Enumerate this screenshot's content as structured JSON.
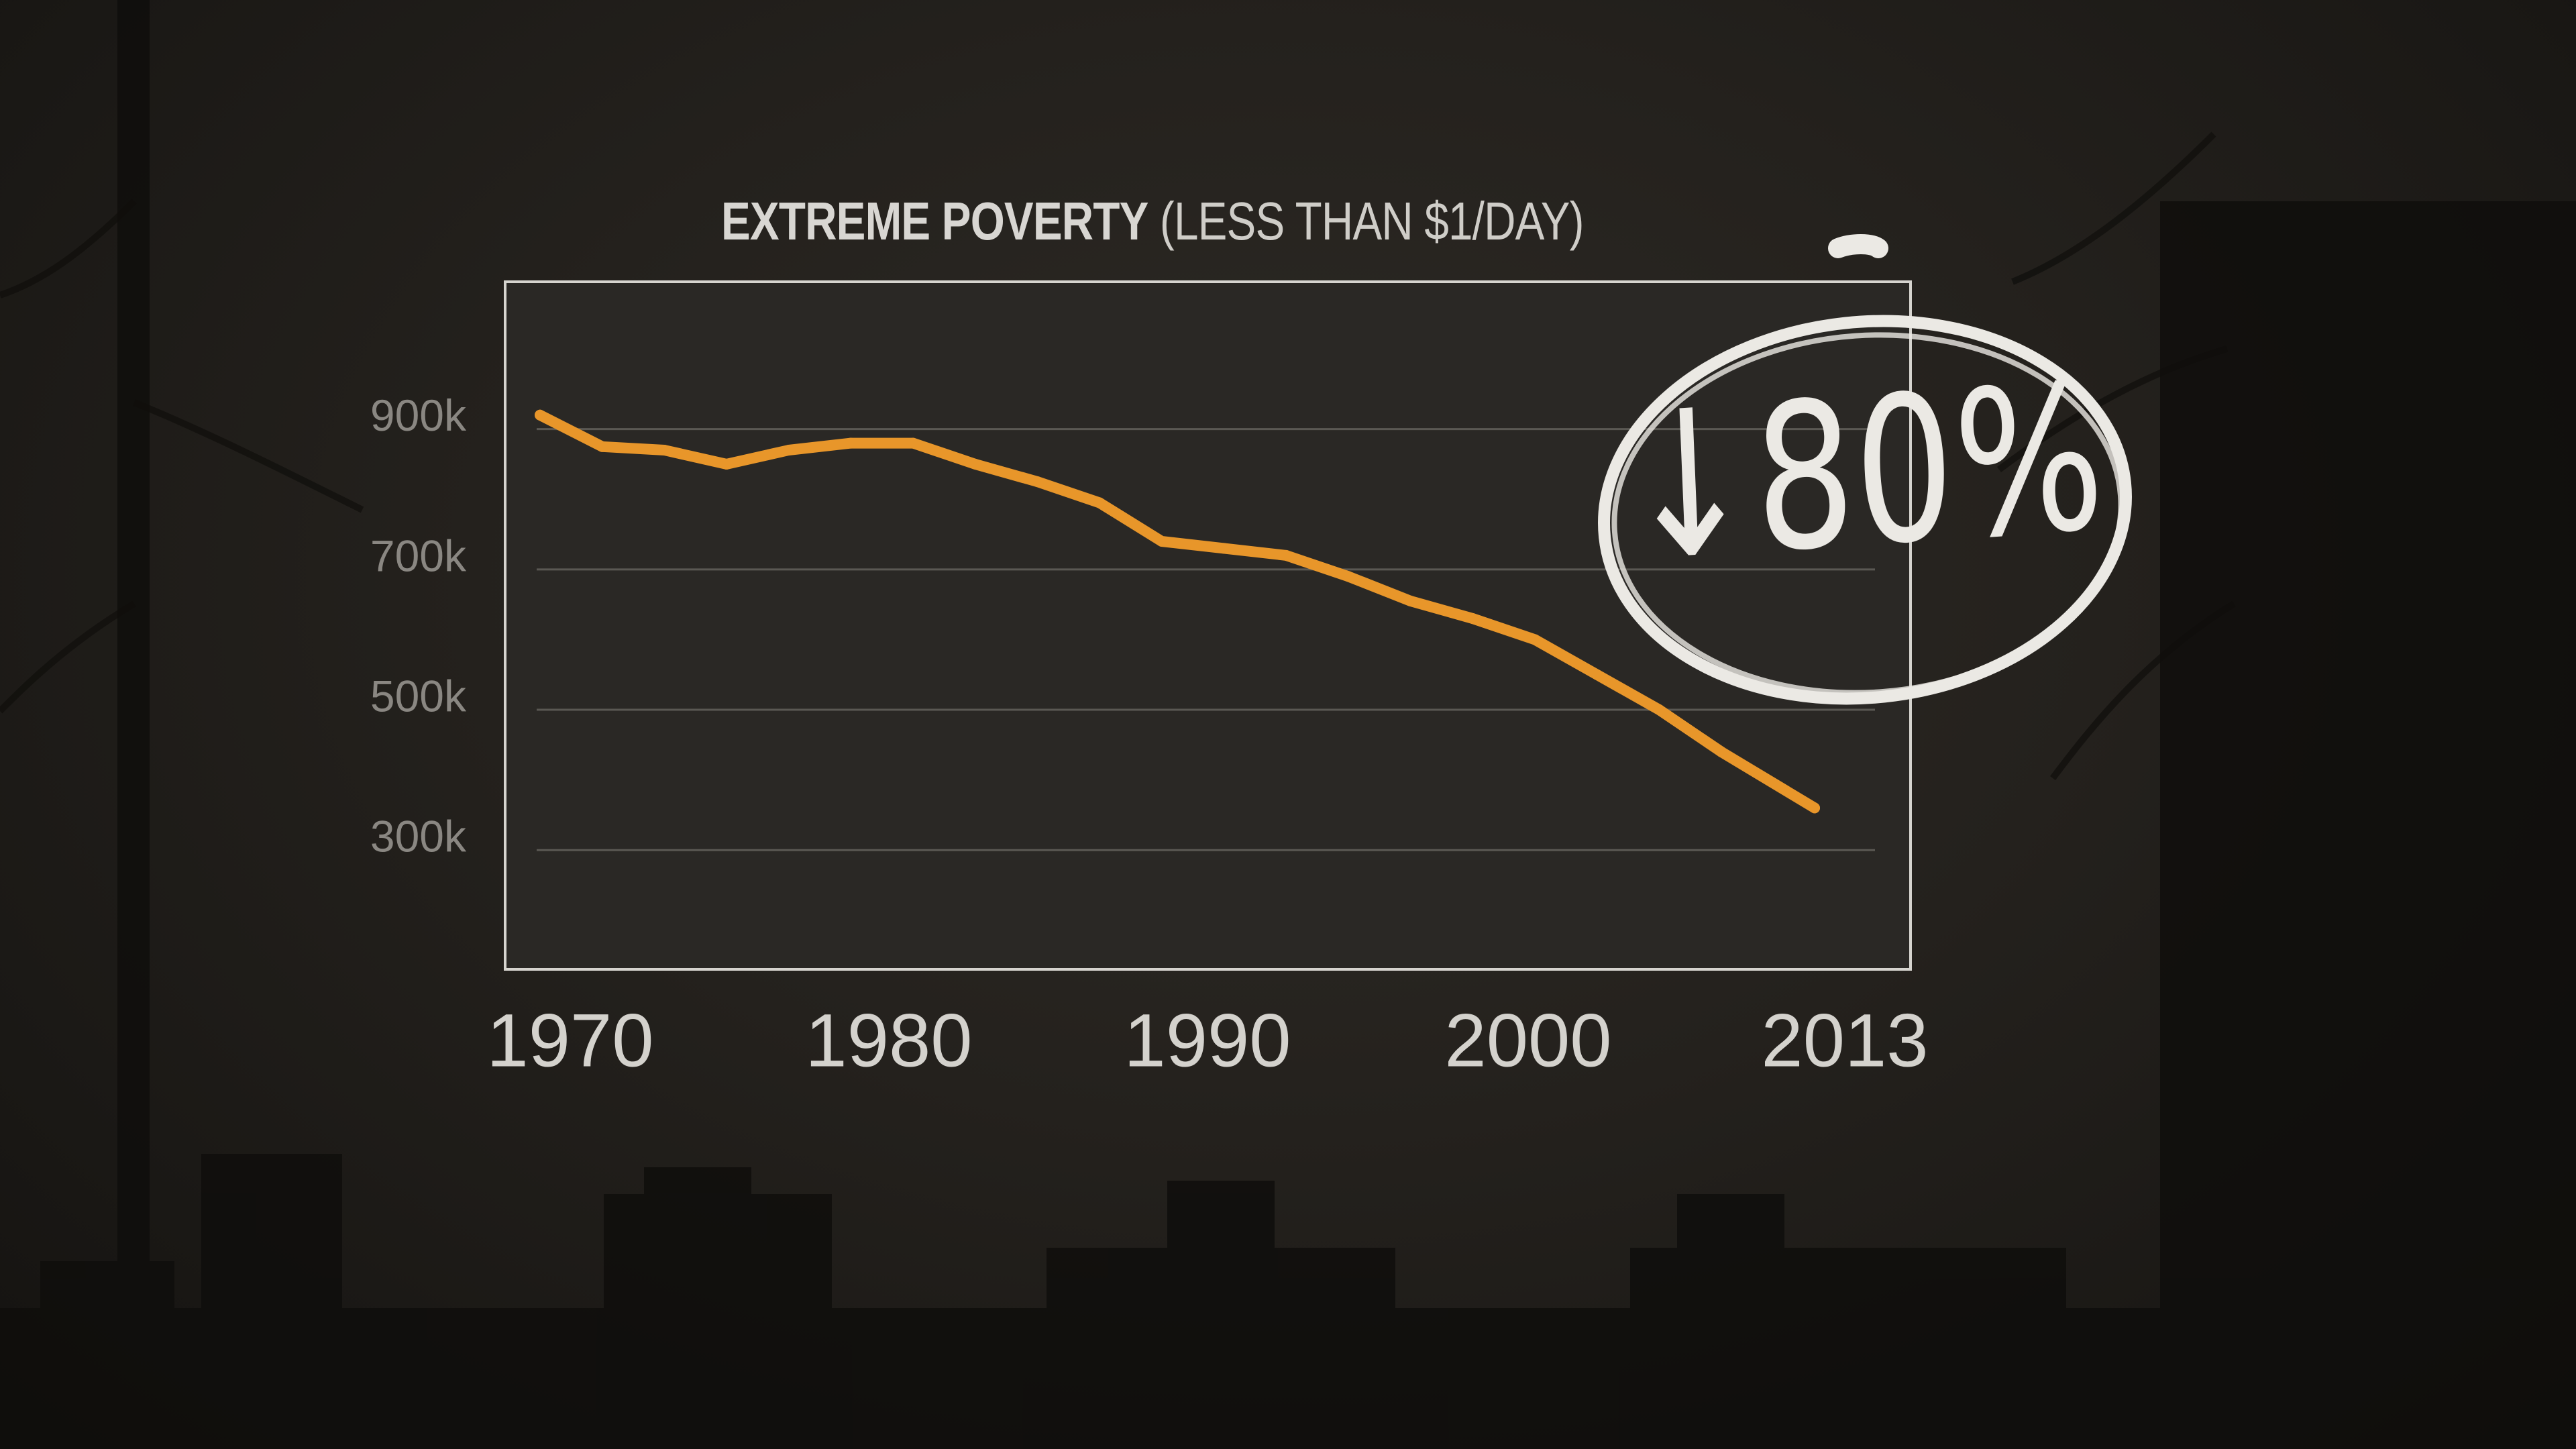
{
  "chart_data": {
    "type": "line",
    "title_bold": "EXTREME POVERTY",
    "title_rest": "(LESS THAN $1/DAY)",
    "x": [
      1970,
      1972,
      1974,
      1976,
      1978,
      1980,
      1982,
      1984,
      1986,
      1988,
      1990,
      1992,
      1994,
      1996,
      1998,
      2000,
      2002,
      2004,
      2006,
      2008,
      2011
    ],
    "values": [
      920,
      875,
      870,
      850,
      870,
      880,
      880,
      850,
      825,
      795,
      740,
      730,
      720,
      690,
      655,
      630,
      600,
      550,
      500,
      440,
      360
    ],
    "x_ticks": [
      "1970",
      "1980",
      "1990",
      "2000",
      "2013"
    ],
    "y_ticks": [
      "300k",
      "500k",
      "700k",
      "900k"
    ],
    "y_tick_values": [
      300,
      500,
      700,
      900
    ],
    "ylim": [
      130,
      1110
    ],
    "xlim": [
      1969,
      2013
    ],
    "series_color": "#e8962a",
    "annotation": "↓80%",
    "xlabel": "",
    "ylabel": ""
  }
}
